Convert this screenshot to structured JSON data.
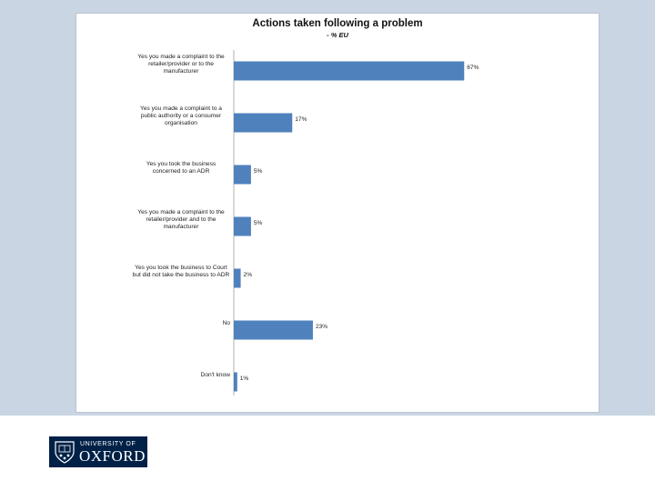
{
  "chart_data": {
    "type": "bar",
    "orientation": "horizontal",
    "title": "Actions taken following a problem",
    "subtitle": "- % EU",
    "categories": [
      "Yes you made a complaint to the retailer/provider or to the manufacturer",
      "Yes you made a complaint to a public authority or a consumer organisation",
      "Yes you took the business concerned to an ADR",
      "Yes you made a complaint to the retailer/provider and to the manufacturer",
      "Yes you took the business to Court but did not take the business to ADR",
      "No",
      "Don't know"
    ],
    "category_lines": [
      [
        "Yes you made a complaint to the",
        "retailer/provider or to the",
        "manufacturer"
      ],
      [
        "Yes you made a complaint to a",
        "public authority or a consumer",
        "organisation"
      ],
      [
        "Yes you took the business",
        "concerned to an ADR"
      ],
      [
        "Yes you made a complaint to the",
        "retailer/provider and to the",
        "manufacturer"
      ],
      [
        "Yes you took the business to Court",
        "but did not take the business to ADR"
      ],
      [
        "No"
      ],
      [
        "Don't know"
      ]
    ],
    "values": [
      67,
      17,
      5,
      5,
      2,
      23,
      1
    ],
    "value_labels": [
      "67%",
      "17%",
      "5%",
      "5%",
      "2%",
      "23%",
      "1%"
    ],
    "xlim": [
      0,
      100
    ],
    "grid": false,
    "legend": "none",
    "bar_color": "#4f81bd"
  },
  "logo": {
    "line1": "UNIVERSITY OF",
    "line2": "OXFORD",
    "background": "#002147"
  }
}
